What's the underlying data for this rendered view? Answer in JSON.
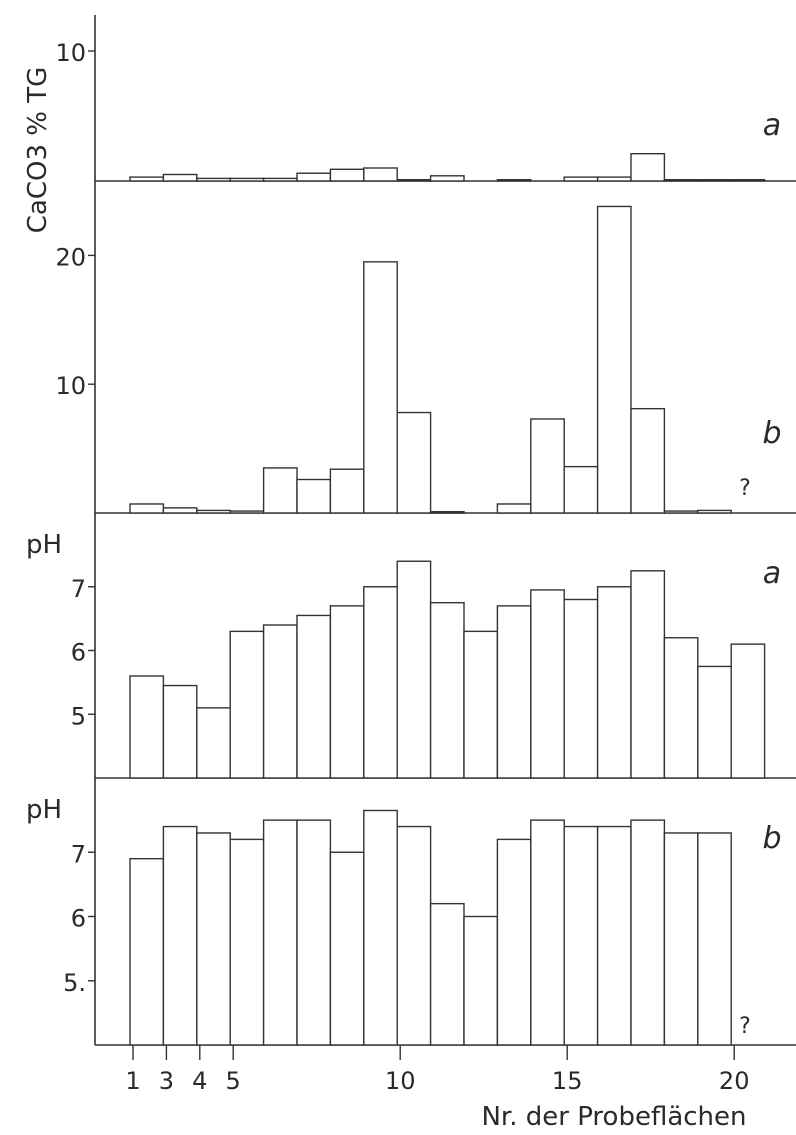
{
  "chart_data": [
    {
      "type": "bar",
      "panel_label": "a",
      "ylabel": "CaCO3 % TG",
      "ylim": [
        0,
        12
      ],
      "yticks": [
        "10"
      ],
      "x": [
        1,
        3,
        4,
        5,
        6,
        7,
        8,
        9,
        10,
        11,
        13,
        15,
        16,
        17,
        18,
        19,
        20
      ],
      "values": [
        0.3,
        0.5,
        0.2,
        0.2,
        0.2,
        0.6,
        0.9,
        1.0,
        0.1,
        0.4,
        0.1,
        0.3,
        0.3,
        2.1,
        0.1,
        0.1,
        0.1
      ]
    },
    {
      "type": "bar",
      "panel_label": "b",
      "ylim": [
        0,
        25
      ],
      "yticks": [
        "10",
        "20"
      ],
      "annotation": "?",
      "x": [
        1,
        3,
        4,
        5,
        6,
        7,
        8,
        9,
        10,
        11,
        13,
        14,
        15,
        16,
        17,
        18,
        19
      ],
      "values": [
        0.7,
        0.4,
        0.2,
        0.15,
        3.5,
        2.6,
        3.4,
        19.5,
        7.8,
        0.1,
        0.7,
        7.3,
        3.6,
        23.8,
        8.1,
        0.15,
        0.2
      ]
    },
    {
      "type": "bar",
      "panel_label": "a",
      "ylabel": "pH",
      "ylim": [
        4,
        8
      ],
      "yticks": [
        "5",
        "6",
        "7"
      ],
      "x": [
        1,
        3,
        4,
        5,
        6,
        7,
        8,
        9,
        10,
        11,
        12,
        13,
        14,
        15,
        16,
        17,
        18,
        19,
        20
      ],
      "values": [
        5.6,
        5.45,
        5.1,
        6.3,
        6.4,
        6.55,
        6.7,
        7.0,
        7.4,
        6.75,
        6.3,
        6.7,
        6.95,
        6.8,
        7.0,
        7.25,
        6.2,
        5.75,
        6.1
      ]
    },
    {
      "type": "bar",
      "panel_label": "b",
      "ylabel": "pH",
      "ylim": [
        4,
        8
      ],
      "yticks": [
        "5.",
        "6",
        "7"
      ],
      "annotation": "?",
      "x": [
        1,
        3,
        4,
        5,
        6,
        7,
        8,
        9,
        10,
        11,
        12,
        13,
        14,
        15,
        16,
        17,
        18,
        19
      ],
      "values": [
        6.9,
        7.4,
        7.3,
        7.2,
        7.5,
        7.5,
        7.0,
        7.65,
        7.4,
        6.2,
        6.0,
        7.2,
        7.5,
        7.4,
        7.4,
        7.5,
        7.3,
        7.3
      ]
    }
  ],
  "x_axis": {
    "ticks": [
      "1",
      "3",
      "4",
      "5",
      "10",
      "15",
      "20"
    ],
    "label": "Nr. der Probeflächen"
  }
}
